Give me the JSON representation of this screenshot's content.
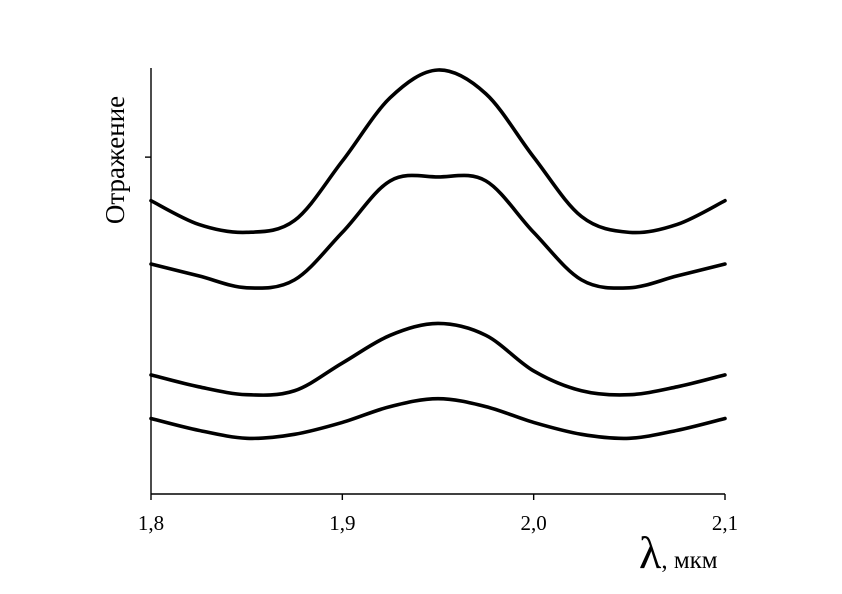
{
  "chart_data": {
    "type": "line",
    "ylabel": "Отражение",
    "xlabel_symbol": "λ",
    "xlabel_unit": ", мкм",
    "xlim": [
      1.8,
      2.1
    ],
    "x_ticks": [
      {
        "value": 1.8,
        "label": "1,8"
      },
      {
        "value": 1.9,
        "label": "1,9"
      },
      {
        "value": 2.0,
        "label": "2,0"
      },
      {
        "value": 2.1,
        "label": "2,1"
      }
    ],
    "y_ticks": [
      0.78
    ],
    "ylim": [
      0,
      1
    ],
    "grid": false,
    "series": [
      {
        "x": [
          1.8,
          1.825,
          1.85,
          1.875,
          1.9,
          1.925,
          1.95,
          1.975,
          2.0,
          2.025,
          2.05,
          2.075,
          2.1
        ],
        "values": [
          0.67,
          0.61,
          0.59,
          0.62,
          0.77,
          0.93,
          1.0,
          0.94,
          0.78,
          0.63,
          0.59,
          0.61,
          0.67
        ]
      },
      {
        "x": [
          1.8,
          1.825,
          1.85,
          1.875,
          1.9,
          1.925,
          1.95,
          1.975,
          2.0,
          2.025,
          2.05,
          2.075,
          2.1
        ],
        "values": [
          0.51,
          0.48,
          0.45,
          0.47,
          0.59,
          0.72,
          0.73,
          0.72,
          0.59,
          0.47,
          0.45,
          0.48,
          0.51
        ]
      },
      {
        "x": [
          1.8,
          1.825,
          1.85,
          1.875,
          1.9,
          1.925,
          1.95,
          1.975,
          2.0,
          2.025,
          2.05,
          2.075,
          2.1
        ],
        "values": [
          0.23,
          0.2,
          0.18,
          0.19,
          0.26,
          0.33,
          0.36,
          0.33,
          0.24,
          0.19,
          0.18,
          0.2,
          0.23
        ]
      },
      {
        "x": [
          1.8,
          1.825,
          1.85,
          1.875,
          1.9,
          1.925,
          1.95,
          1.975,
          2.0,
          2.025,
          2.05,
          2.075,
          2.1
        ],
        "values": [
          0.12,
          0.09,
          0.07,
          0.08,
          0.11,
          0.15,
          0.17,
          0.15,
          0.11,
          0.08,
          0.07,
          0.09,
          0.12
        ]
      }
    ]
  }
}
